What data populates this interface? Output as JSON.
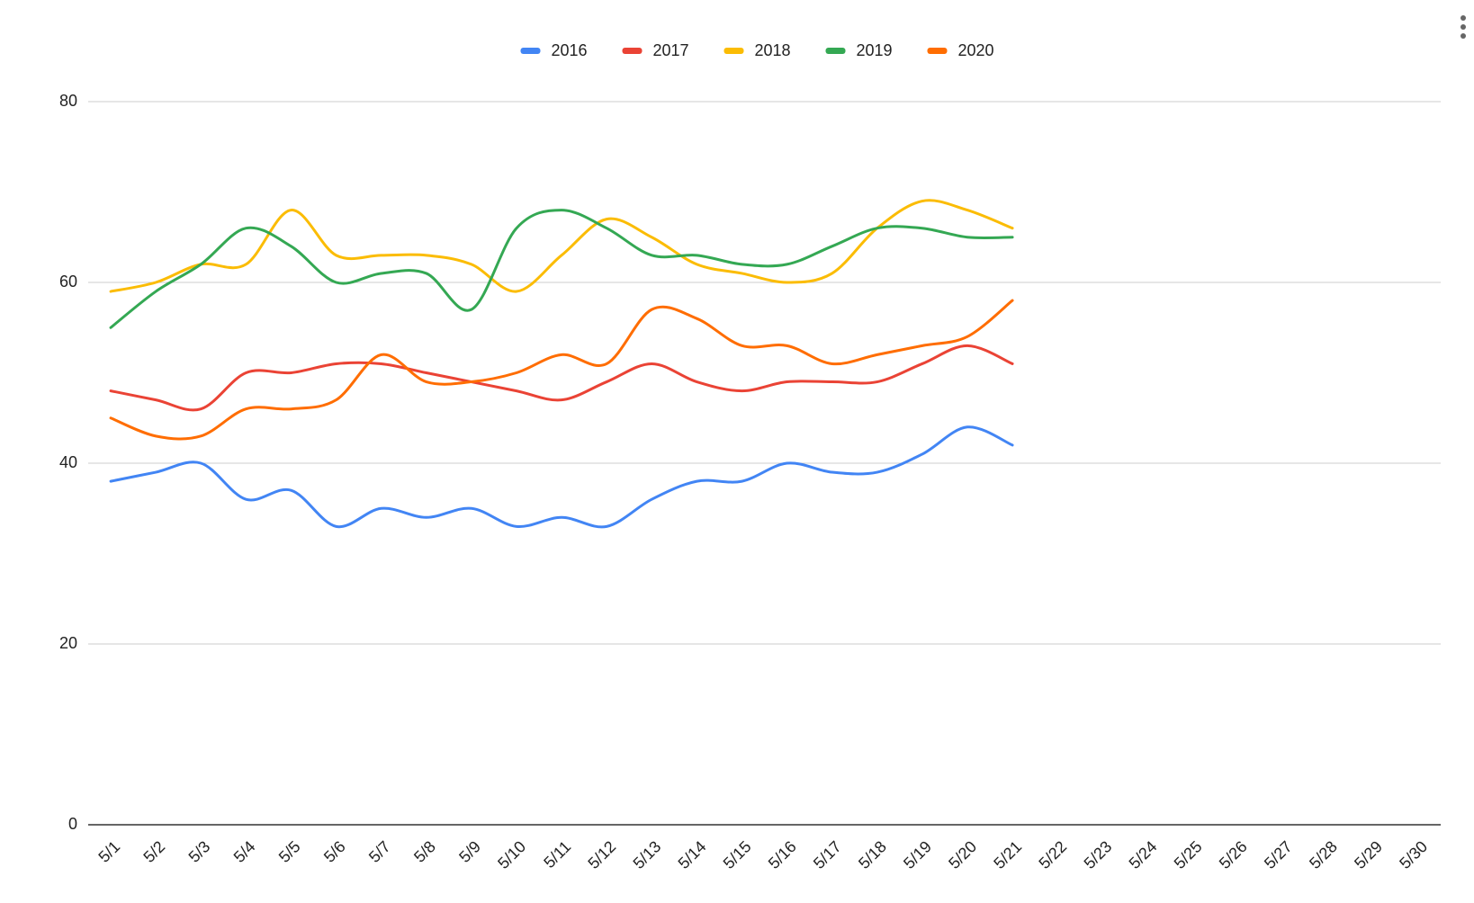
{
  "chart_data": {
    "type": "line",
    "categories": [
      "5/1",
      "5/2",
      "5/3",
      "5/4",
      "5/5",
      "5/6",
      "5/7",
      "5/8",
      "5/9",
      "5/10",
      "5/11",
      "5/12",
      "5/13",
      "5/14",
      "5/15",
      "5/16",
      "5/17",
      "5/18",
      "5/19",
      "5/20",
      "5/21",
      "5/22",
      "5/23",
      "5/24",
      "5/25",
      "5/26",
      "5/27",
      "5/28",
      "5/29",
      "5/30"
    ],
    "series": [
      {
        "name": "2016",
        "color": "#4285f4",
        "values": [
          38,
          39,
          40,
          36,
          37,
          33,
          35,
          34,
          35,
          33,
          34,
          33,
          36,
          38,
          38,
          40,
          39,
          39,
          41,
          44,
          42,
          null,
          null,
          null,
          null,
          null,
          null,
          null,
          null,
          null
        ]
      },
      {
        "name": "2017",
        "color": "#ea4335",
        "values": [
          48,
          47,
          46,
          50,
          50,
          51,
          51,
          50,
          49,
          48,
          47,
          49,
          51,
          49,
          48,
          49,
          49,
          49,
          51,
          53,
          51,
          null,
          null,
          null,
          null,
          null,
          null,
          null,
          null,
          null
        ]
      },
      {
        "name": "2018",
        "color": "#fbbc04",
        "values": [
          59,
          60,
          62,
          62,
          68,
          63,
          63,
          63,
          62,
          59,
          63,
          67,
          65,
          62,
          61,
          60,
          61,
          66,
          69,
          68,
          66,
          null,
          null,
          null,
          null,
          null,
          null,
          null,
          null,
          null
        ]
      },
      {
        "name": "2019",
        "color": "#34a853",
        "values": [
          55,
          59,
          62,
          66,
          64,
          60,
          61,
          61,
          57,
          66,
          68,
          66,
          63,
          63,
          62,
          62,
          64,
          66,
          66,
          65,
          65,
          null,
          null,
          null,
          null,
          null,
          null,
          null,
          null,
          null
        ]
      },
      {
        "name": "2020",
        "color": "#ff6d01",
        "values": [
          45,
          43,
          43,
          46,
          46,
          47,
          52,
          49,
          49,
          50,
          52,
          51,
          57,
          56,
          53,
          53,
          51,
          52,
          53,
          54,
          58,
          null,
          null,
          null,
          null,
          null,
          null,
          null,
          null,
          null
        ]
      }
    ],
    "ylim": [
      0,
      80
    ],
    "yticks": [
      0,
      20,
      40,
      60,
      80
    ],
    "grid": true,
    "legend": "top"
  }
}
